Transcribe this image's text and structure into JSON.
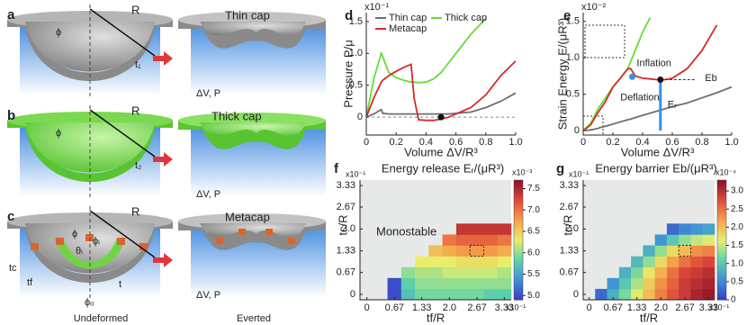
{
  "illustrations": {
    "panels": [
      {
        "label": "a",
        "title": "Thin cap",
        "radius": "R",
        "angle": "ϕ",
        "thickness": "t₁",
        "load": "ΔV, P"
      },
      {
        "label": "b",
        "title": "Thick cap",
        "radius": "R",
        "angle": "ϕ",
        "thickness": "t₂",
        "load": "ΔV, P"
      },
      {
        "label": "c",
        "title": "Metacap",
        "radius": "R",
        "angle": "ϕ",
        "inner_angle": "ϕᵢ",
        "theta": "θᵢ",
        "cap_thickness": "tc",
        "frame_thickness": "tf",
        "thickness": "t",
        "outer_angle": "ϕₒ",
        "load": "ΔV, P"
      }
    ],
    "columns": [
      "Undeformed",
      "Everted"
    ]
  },
  "chart_data": [
    {
      "type": "line",
      "label": "d",
      "ylabel": "Pressure P/μ",
      "xlabel": "Volume ΔV/R³",
      "ymultiplier": "x10⁻¹",
      "xlim": [
        0,
        1
      ],
      "ylim": [
        -0.28,
        1.64
      ],
      "xticks": [
        0,
        0.2,
        0.4,
        0.6,
        0.8,
        {
          "value": 1,
          "label": "1.0"
        }
      ],
      "yticks": [
        0,
        0.5,
        {
          "value": 1,
          "label": "1.0"
        },
        1.5
      ],
      "zero_line": true,
      "legend": "upper left",
      "x": [
        0,
        0.05,
        0.1,
        0.11,
        0.15,
        0.2,
        0.25,
        0.3,
        0.32,
        0.35,
        0.4,
        0.45,
        0.5,
        0.55,
        0.6,
        0.7,
        0.8,
        0.9,
        1.0
      ],
      "series": [
        {
          "name": "Thin cap",
          "color": "#6e6e6e",
          "values": [
            0,
            0.05,
            0.12,
            0.06,
            0.05,
            0.05,
            0.05,
            0.05,
            0.05,
            0.05,
            0.05,
            0.05,
            0.05,
            0.05,
            0.06,
            0.08,
            0.15,
            0.25,
            0.38
          ]
        },
        {
          "name": "Thick cap",
          "color": "#63dd33",
          "values": [
            0,
            0.6,
            1.0,
            0.95,
            0.7,
            0.62,
            0.58,
            0.55,
            0.55,
            0.54,
            0.55,
            0.6,
            0.7,
            0.85,
            1.0,
            1.3,
            1.55,
            null,
            null
          ]
        },
        {
          "name": "Metacap",
          "color": "#d42a2a",
          "values": [
            0,
            0.3,
            0.55,
            0.58,
            0.65,
            0.72,
            0.78,
            0.83,
            0.3,
            -0.04,
            -0.05,
            -0.05,
            -0.03,
            0,
            0.05,
            0.15,
            0.35,
            0.65,
            0.88
          ]
        }
      ],
      "markers": [
        {
          "x": 0.5,
          "y": 0,
          "color": "#111111"
        }
      ]
    },
    {
      "type": "line",
      "label": "e",
      "ylabel": "Strain Energy E/(μR³)",
      "xlabel": "Volume ΔV/R³",
      "ymultiplier": "x10⁻²",
      "xlim": [
        0,
        1
      ],
      "ylim": [
        -0.06,
        1.62
      ],
      "xticks": [
        0,
        0.2,
        0.4,
        0.6,
        0.8,
        {
          "value": 1,
          "label": "1.0"
        }
      ],
      "yticks": [
        0,
        0.5,
        {
          "value": 1,
          "label": "1.0"
        },
        1.5
      ],
      "x": [
        0,
        0.05,
        0.1,
        0.11,
        0.15,
        0.2,
        0.25,
        0.3,
        0.32,
        0.35,
        0.4,
        0.45,
        0.5,
        0.55,
        0.6,
        0.7,
        0.8,
        0.9,
        1.0
      ],
      "series": [
        {
          "name": "Thin cap",
          "color": "#6e6e6e",
          "values": [
            0,
            0.01,
            0.03,
            0.04,
            0.06,
            0.09,
            0.12,
            0.15,
            0.16,
            0.18,
            0.21,
            0.24,
            0.27,
            0.3,
            0.33,
            0.38,
            0.45,
            0.52,
            0.6
          ]
        },
        {
          "name": "Thick cap",
          "color": "#63dd33",
          "values": [
            0,
            0.1,
            0.3,
            0.33,
            0.45,
            0.6,
            0.72,
            0.85,
            0.95,
            1.1,
            1.35,
            1.55,
            null,
            null,
            null,
            null,
            null,
            null,
            null
          ]
        },
        {
          "name": "Metacap",
          "color": "#d42a2a",
          "values": [
            0,
            0.08,
            0.25,
            0.28,
            0.4,
            0.6,
            0.72,
            0.85,
            0.85,
            0.75,
            0.72,
            0.71,
            0.7,
            0.7,
            0.72,
            0.85,
            1.1,
            1.45,
            null
          ]
        }
      ],
      "markers": [
        {
          "x": 0.33,
          "y": 0.74,
          "color": "#3a8ee6"
        },
        {
          "x": 0.52,
          "y": 0.7,
          "color": "#111111"
        }
      ],
      "annotations": [
        "Inflation",
        "Deflation",
        "Eb",
        "Eᵣ"
      ]
    },
    {
      "type": "heatmap",
      "label": "f",
      "title": "Energy release Eᵣ/(μR³)",
      "xlabel": "tf/R",
      "ylabel": "tc/R",
      "xmultiplier": "x10⁻¹",
      "ymultiplier": "x10⁻¹",
      "cmultiplier": "x10⁻³",
      "note": "Monostable",
      "x": [
        0,
        0.33,
        0.67,
        1.0,
        1.33,
        1.67,
        2.0,
        2.33,
        2.67,
        3.0,
        3.33
      ],
      "y": [
        0,
        0.33,
        0.67,
        1.0,
        1.33,
        1.67,
        2.0,
        2.33,
        2.67,
        3.0,
        3.33
      ],
      "xticks": [
        0,
        0.67,
        1.33,
        {
          "value": 2,
          "label": "2.0"
        },
        2.67,
        3.33
      ],
      "yticks": [
        0,
        0.67,
        1.33,
        {
          "value": 2,
          "label": "2.0"
        },
        2.67,
        3.33
      ],
      "clim": [
        4.9,
        7.7
      ],
      "cticks": [
        {
          "value": 5,
          "label": "5.0"
        },
        5.5,
        {
          "value": 6,
          "label": "6.0"
        },
        6.5,
        {
          "value": 7,
          "label": "7.0"
        },
        7.5
      ],
      "colormap": [
        "#3a3bc3",
        "#3f8fd8",
        "#5fd3a8",
        "#e8ee6b",
        "#f5a14a",
        "#e04b3a",
        "#8b0f2a"
      ],
      "z": [
        [
          null,
          null,
          5.0,
          5.7,
          5.9,
          5.9,
          5.9,
          5.9,
          5.9,
          5.8,
          5.8
        ],
        [
          null,
          null,
          5.0,
          5.8,
          6.0,
          6.0,
          6.0,
          6.0,
          6.0,
          6.0,
          6.0
        ],
        [
          null,
          null,
          null,
          6.0,
          6.1,
          6.1,
          6.2,
          6.2,
          6.2,
          6.2,
          6.1
        ],
        [
          null,
          null,
          null,
          null,
          6.3,
          6.3,
          6.3,
          6.4,
          6.4,
          6.4,
          6.3
        ],
        [
          null,
          null,
          null,
          null,
          null,
          6.6,
          6.7,
          6.8,
          6.8,
          6.8,
          6.7
        ],
        [
          null,
          null,
          null,
          null,
          null,
          null,
          7.0,
          7.1,
          7.1,
          7.1,
          7.0
        ],
        [
          null,
          null,
          null,
          null,
          null,
          null,
          null,
          7.4,
          7.4,
          7.4,
          7.4
        ],
        [
          null,
          null,
          null,
          null,
          null,
          null,
          null,
          null,
          null,
          null,
          null
        ],
        [
          null,
          null,
          null,
          null,
          null,
          null,
          null,
          null,
          null,
          null,
          null
        ],
        [
          null,
          null,
          null,
          null,
          null,
          null,
          null,
          null,
          null,
          null,
          null
        ],
        [
          null,
          null,
          null,
          null,
          null,
          null,
          null,
          null,
          null,
          null,
          null
        ]
      ]
    },
    {
      "type": "heatmap",
      "label": "g",
      "title": "Energy barrier Eb/(μR³)",
      "xlabel": "tf/R",
      "ylabel": "tc/R",
      "xmultiplier": "x10⁻¹",
      "ymultiplier": "x10⁻¹",
      "cmultiplier": "x10⁻⁴",
      "x": [
        0,
        0.33,
        0.67,
        1.0,
        1.33,
        1.67,
        2.0,
        2.33,
        2.67,
        3.0,
        3.33
      ],
      "y": [
        0,
        0.33,
        0.67,
        1.0,
        1.33,
        1.67,
        2.0,
        2.33,
        2.67,
        3.0,
        3.33
      ],
      "xticks": [
        0,
        0.67,
        1.33,
        {
          "value": 2,
          "label": "2.0"
        },
        2.67,
        3.33
      ],
      "yticks": [
        0,
        0.67,
        1.33,
        {
          "value": 2,
          "label": "2.0"
        },
        2.67,
        3.33
      ],
      "clim": [
        0,
        3.3
      ],
      "cticks": [
        0,
        0.5,
        {
          "value": 1,
          "label": "1.0"
        },
        1.5,
        {
          "value": 2,
          "label": "2.0"
        },
        2.5,
        {
          "value": 3,
          "label": "3.0"
        }
      ],
      "colormap": [
        "#3a3bc3",
        "#3f8fd8",
        "#5fd3a8",
        "#e8ee6b",
        "#f5a14a",
        "#e04b3a",
        "#8b0f2a"
      ],
      "z": [
        [
          null,
          0.3,
          0.8,
          1.2,
          1.6,
          2.0,
          2.4,
          2.7,
          2.9,
          3.1,
          3.2
        ],
        [
          null,
          null,
          0.6,
          1.0,
          1.4,
          1.9,
          2.3,
          2.6,
          2.9,
          3.0,
          3.1
        ],
        [
          null,
          null,
          null,
          0.8,
          1.2,
          1.7,
          2.1,
          2.5,
          2.8,
          2.9,
          3.0
        ],
        [
          null,
          null,
          null,
          null,
          0.9,
          1.3,
          1.8,
          2.2,
          2.5,
          2.7,
          2.8
        ],
        [
          null,
          null,
          null,
          null,
          null,
          0.8,
          1.3,
          1.8,
          2.0,
          2.3,
          2.4
        ],
        [
          null,
          null,
          null,
          null,
          null,
          null,
          0.6,
          1.0,
          1.3,
          1.5,
          1.6
        ],
        [
          null,
          null,
          null,
          null,
          null,
          null,
          null,
          0.3,
          0.5,
          0.6,
          0.7
        ],
        [
          null,
          null,
          null,
          null,
          null,
          null,
          null,
          null,
          null,
          null,
          null
        ],
        [
          null,
          null,
          null,
          null,
          null,
          null,
          null,
          null,
          null,
          null,
          null
        ],
        [
          null,
          null,
          null,
          null,
          null,
          null,
          null,
          null,
          null,
          null,
          null
        ],
        [
          null,
          null,
          null,
          null,
          null,
          null,
          null,
          null,
          null,
          null,
          null
        ]
      ]
    }
  ]
}
